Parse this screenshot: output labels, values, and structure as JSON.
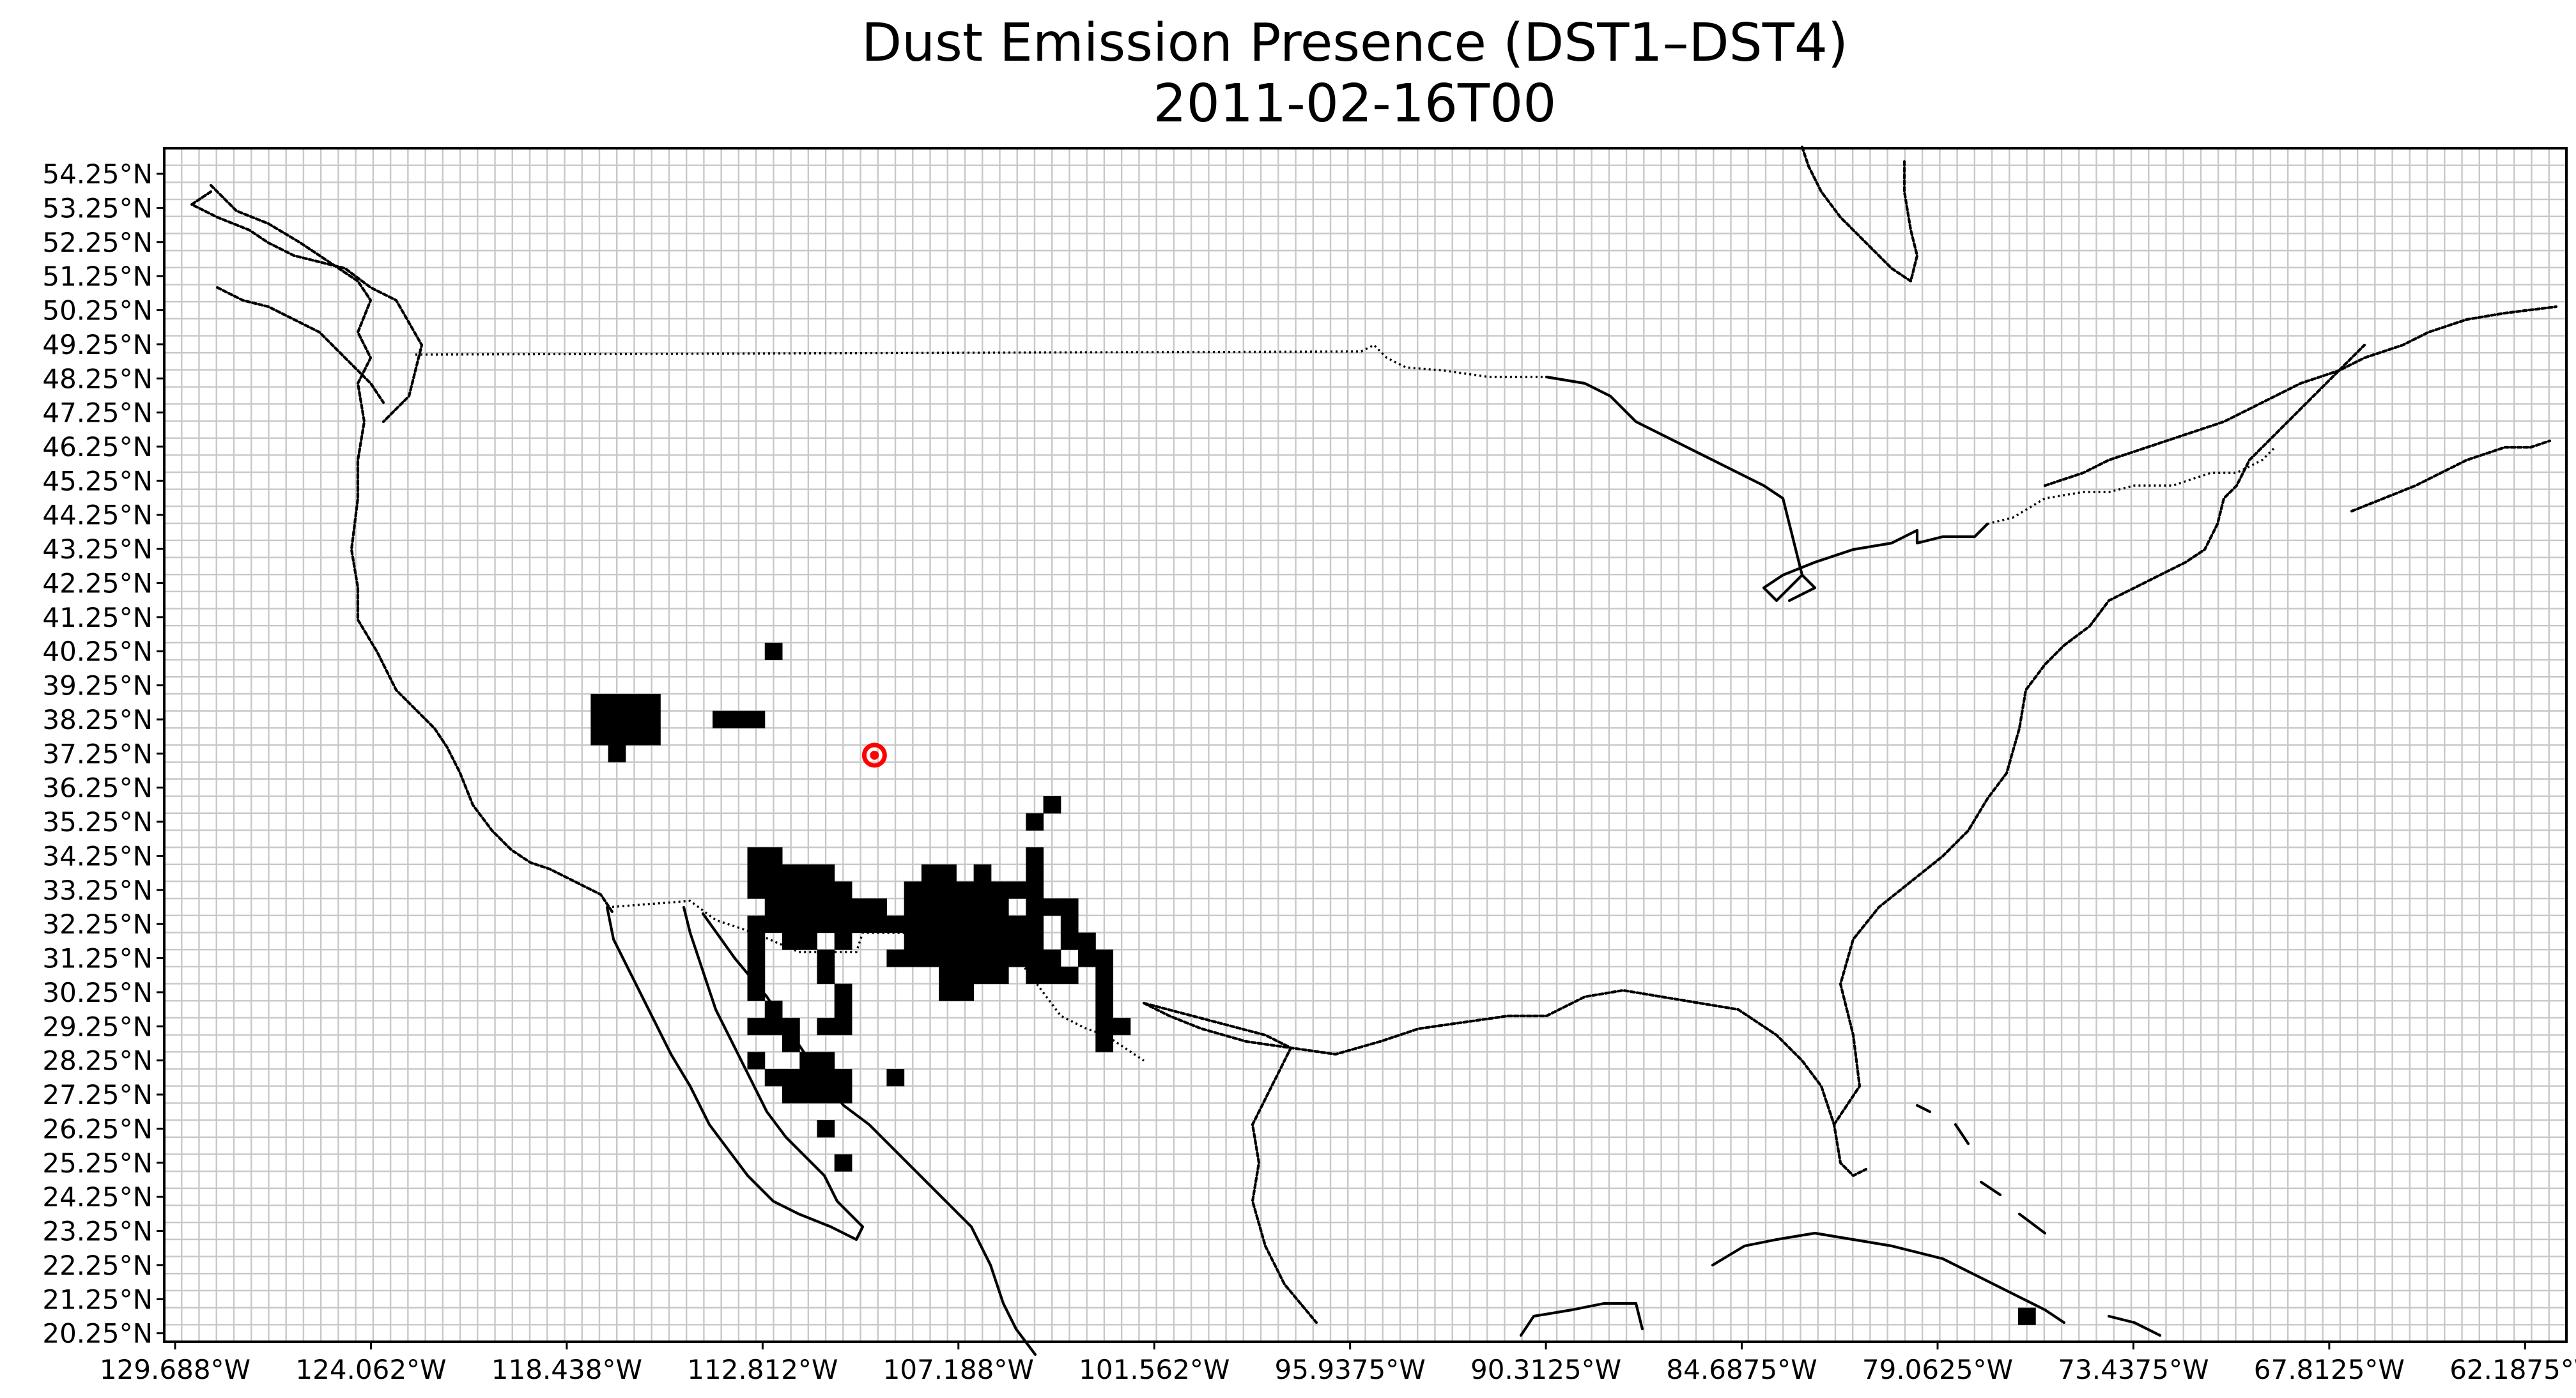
{
  "chart_data": {
    "type": "heatmap",
    "title": "Dust Emission Presence (DST1–DST4)",
    "subtitle": "2011-02-16T00",
    "xlabel": "",
    "ylabel": "",
    "xlim": [
      -130.0,
      -61.0
    ],
    "ylim": [
      20.0,
      55.0
    ],
    "grid_step_deg": 0.5,
    "grid": true,
    "y_ticks": [
      "54.25°N",
      "53.25°N",
      "52.25°N",
      "51.25°N",
      "50.25°N",
      "49.25°N",
      "48.25°N",
      "47.25°N",
      "46.25°N",
      "45.25°N",
      "44.25°N",
      "43.25°N",
      "42.25°N",
      "41.25°N",
      "40.25°N",
      "39.25°N",
      "38.25°N",
      "37.25°N",
      "36.25°N",
      "35.25°N",
      "34.25°N",
      "33.25°N",
      "32.25°N",
      "31.25°N",
      "30.25°N",
      "29.25°N",
      "28.25°N",
      "27.25°N",
      "26.25°N",
      "25.25°N",
      "24.25°N",
      "23.25°N",
      "22.25°N",
      "21.25°N",
      "20.25°N"
    ],
    "y_tick_values": [
      54.25,
      53.25,
      52.25,
      51.25,
      50.25,
      49.25,
      48.25,
      47.25,
      46.25,
      45.25,
      44.25,
      43.25,
      42.25,
      41.25,
      40.25,
      39.25,
      38.25,
      37.25,
      36.25,
      35.25,
      34.25,
      33.25,
      32.25,
      31.25,
      30.25,
      29.25,
      28.25,
      27.25,
      26.25,
      25.25,
      24.25,
      23.25,
      22.25,
      21.25,
      20.25
    ],
    "x_ticks": [
      "129.688°W",
      "124.062°W",
      "118.438°W",
      "112.812°W",
      "107.188°W",
      "101.562°W",
      "95.9375°W",
      "90.3125°W",
      "84.6875°W",
      "79.0625°W",
      "73.4375°W",
      "67.8125°W",
      "62.1875°W"
    ],
    "x_tick_values": [
      -129.688,
      -124.062,
      -118.438,
      -112.812,
      -107.188,
      -101.562,
      -95.9375,
      -90.3125,
      -84.6875,
      -79.0625,
      -73.4375,
      -67.8125,
      -62.1875
    ],
    "series": [
      {
        "values_description": "dust emission present (value 1) at [lon, lat] cell centres",
        "cells": [
          [
            -112.5,
            40.25
          ],
          [
            -117.5,
            38.75
          ],
          [
            -117.0,
            38.75
          ],
          [
            -116.5,
            38.75
          ],
          [
            -116.0,
            38.75
          ],
          [
            -117.5,
            38.25
          ],
          [
            -117.0,
            38.25
          ],
          [
            -116.5,
            38.25
          ],
          [
            -116.0,
            38.25
          ],
          [
            -117.5,
            37.75
          ],
          [
            -117.0,
            37.75
          ],
          [
            -116.5,
            37.75
          ],
          [
            -116.0,
            37.75
          ],
          [
            -117.0,
            37.25
          ],
          [
            -114.0,
            38.25
          ],
          [
            -113.5,
            38.25
          ],
          [
            -113.0,
            38.25
          ],
          [
            -104.5,
            35.75
          ],
          [
            -105.0,
            35.25
          ],
          [
            -113.0,
            34.25
          ],
          [
            -112.5,
            34.25
          ],
          [
            -105.0,
            34.25
          ],
          [
            -113.0,
            33.75
          ],
          [
            -112.5,
            33.75
          ],
          [
            -112.0,
            33.75
          ],
          [
            -111.5,
            33.75
          ],
          [
            -111.0,
            33.75
          ],
          [
            -108.0,
            33.75
          ],
          [
            -107.5,
            33.75
          ],
          [
            -106.5,
            33.75
          ],
          [
            -105.0,
            33.75
          ],
          [
            -113.0,
            33.25
          ],
          [
            -112.5,
            33.25
          ],
          [
            -112.0,
            33.25
          ],
          [
            -111.5,
            33.25
          ],
          [
            -111.0,
            33.25
          ],
          [
            -110.5,
            33.25
          ],
          [
            -108.5,
            33.25
          ],
          [
            -108.0,
            33.25
          ],
          [
            -107.5,
            33.25
          ],
          [
            -107.0,
            33.25
          ],
          [
            -106.5,
            33.25
          ],
          [
            -106.0,
            33.25
          ],
          [
            -105.5,
            33.25
          ],
          [
            -105.0,
            33.25
          ],
          [
            -112.5,
            32.75
          ],
          [
            -112.0,
            32.75
          ],
          [
            -111.5,
            32.75
          ],
          [
            -111.0,
            32.75
          ],
          [
            -110.5,
            32.75
          ],
          [
            -110.0,
            32.75
          ],
          [
            -109.5,
            32.75
          ],
          [
            -108.5,
            32.75
          ],
          [
            -108.0,
            32.75
          ],
          [
            -107.5,
            32.75
          ],
          [
            -107.0,
            32.75
          ],
          [
            -106.5,
            32.75
          ],
          [
            -106.0,
            32.75
          ],
          [
            -105.0,
            32.75
          ],
          [
            -104.5,
            32.75
          ],
          [
            -104.0,
            32.75
          ],
          [
            -113.0,
            32.25
          ],
          [
            -112.5,
            32.25
          ],
          [
            -112.0,
            32.25
          ],
          [
            -111.5,
            32.25
          ],
          [
            -111.0,
            32.25
          ],
          [
            -110.5,
            32.25
          ],
          [
            -110.0,
            32.25
          ],
          [
            -109.5,
            32.25
          ],
          [
            -109.0,
            32.25
          ],
          [
            -108.5,
            32.25
          ],
          [
            -108.0,
            32.25
          ],
          [
            -107.5,
            32.25
          ],
          [
            -107.0,
            32.25
          ],
          [
            -106.5,
            32.25
          ],
          [
            -106.0,
            32.25
          ],
          [
            -105.5,
            32.25
          ],
          [
            -105.0,
            32.25
          ],
          [
            -104.0,
            32.25
          ],
          [
            -113.0,
            31.75
          ],
          [
            -112.0,
            31.75
          ],
          [
            -111.5,
            31.75
          ],
          [
            -110.5,
            31.75
          ],
          [
            -108.5,
            31.75
          ],
          [
            -108.0,
            31.75
          ],
          [
            -107.5,
            31.75
          ],
          [
            -107.0,
            31.75
          ],
          [
            -106.5,
            31.75
          ],
          [
            -106.0,
            31.75
          ],
          [
            -105.5,
            31.75
          ],
          [
            -105.0,
            31.75
          ],
          [
            -104.0,
            31.75
          ],
          [
            -103.5,
            31.75
          ],
          [
            -113.0,
            31.25
          ],
          [
            -111.0,
            31.25
          ],
          [
            -109.0,
            31.25
          ],
          [
            -108.5,
            31.25
          ],
          [
            -108.0,
            31.25
          ],
          [
            -107.5,
            31.25
          ],
          [
            -107.0,
            31.25
          ],
          [
            -106.5,
            31.25
          ],
          [
            -106.0,
            31.25
          ],
          [
            -105.5,
            31.25
          ],
          [
            -105.0,
            31.25
          ],
          [
            -104.5,
            31.25
          ],
          [
            -103.5,
            31.25
          ],
          [
            -103.0,
            31.25
          ],
          [
            -113.0,
            30.75
          ],
          [
            -111.0,
            30.75
          ],
          [
            -107.5,
            30.75
          ],
          [
            -107.0,
            30.75
          ],
          [
            -106.5,
            30.75
          ],
          [
            -106.0,
            30.75
          ],
          [
            -105.0,
            30.75
          ],
          [
            -104.5,
            30.75
          ],
          [
            -104.0,
            30.75
          ],
          [
            -103.0,
            30.75
          ],
          [
            -113.0,
            30.25
          ],
          [
            -110.5,
            30.25
          ],
          [
            -107.5,
            30.25
          ],
          [
            -107.0,
            30.25
          ],
          [
            -103.0,
            30.25
          ],
          [
            -112.5,
            29.75
          ],
          [
            -110.5,
            29.75
          ],
          [
            -103.0,
            29.75
          ],
          [
            -113.0,
            29.25
          ],
          [
            -112.5,
            29.25
          ],
          [
            -112.0,
            29.25
          ],
          [
            -111.0,
            29.25
          ],
          [
            -110.5,
            29.25
          ],
          [
            -103.0,
            29.25
          ],
          [
            -102.5,
            29.25
          ],
          [
            -112.0,
            28.75
          ],
          [
            -103.0,
            28.75
          ],
          [
            -113.0,
            28.25
          ],
          [
            -111.5,
            28.25
          ],
          [
            -111.0,
            28.25
          ],
          [
            -112.5,
            27.75
          ],
          [
            -112.0,
            27.75
          ],
          [
            -111.5,
            27.75
          ],
          [
            -111.0,
            27.75
          ],
          [
            -110.5,
            27.75
          ],
          [
            -109.0,
            27.75
          ],
          [
            -112.0,
            27.25
          ],
          [
            -111.5,
            27.25
          ],
          [
            -111.0,
            27.25
          ],
          [
            -110.5,
            27.25
          ],
          [
            -111.0,
            26.25
          ],
          [
            -110.5,
            25.25
          ],
          [
            -76.5,
            20.75
          ]
        ]
      }
    ],
    "marker": {
      "lon": -109.6,
      "lat": 37.2,
      "color": "#ff0000"
    }
  }
}
